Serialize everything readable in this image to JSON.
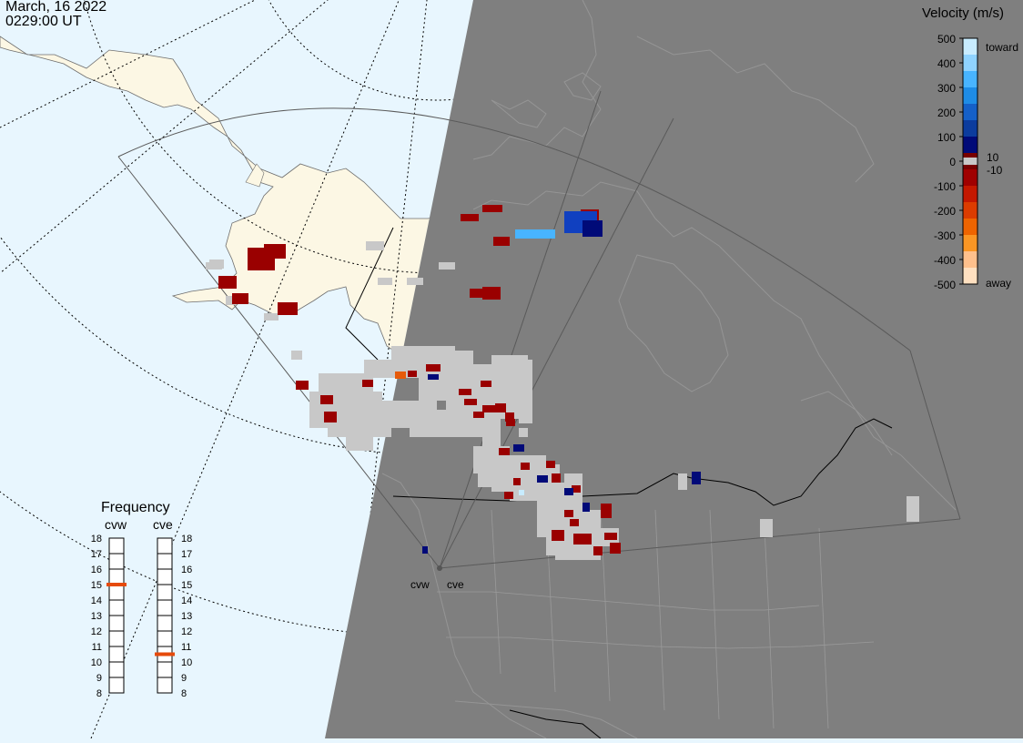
{
  "timestamp": {
    "date": "March, 16 2022",
    "time": "0229:00 UT"
  },
  "velocity_legend": {
    "title": "Velocity (m/s)",
    "toward_label": "toward",
    "away_label": "away",
    "ticks": [
      "500",
      "400",
      "300",
      "200",
      "100",
      "0",
      "-100",
      "-200",
      "-300",
      "-400",
      "-500"
    ],
    "threshold_labels": [
      "10",
      "-10"
    ],
    "colors": [
      "#c8ecff",
      "#8fd3ff",
      "#48b4ff",
      "#1e8ce6",
      "#1560c8",
      "#0c3c9e",
      "#000a78",
      "#780000",
      "#a00000",
      "#c41800",
      "#dc3c00",
      "#ee6400",
      "#fa9624",
      "#ffc08c",
      "#ffe0c0"
    ],
    "ground_scatter_color": "#c8c8c8"
  },
  "frequency_panel": {
    "title": "Frequency",
    "radars": [
      "cvw",
      "cve"
    ],
    "ticks": [
      "18",
      "17",
      "16",
      "15",
      "14",
      "13",
      "12",
      "11",
      "10",
      "9",
      "8"
    ],
    "current_mhz": {
      "cvw": 15,
      "cve": 10.5
    },
    "marker_color": "#e64a0a"
  },
  "radar_sites": {
    "cvw": "cvw",
    "cve": "cve"
  },
  "map_colors": {
    "ocean_day": "#e8f6fe",
    "land_day": "#fcf7e4",
    "night": "#7f7f7f"
  }
}
